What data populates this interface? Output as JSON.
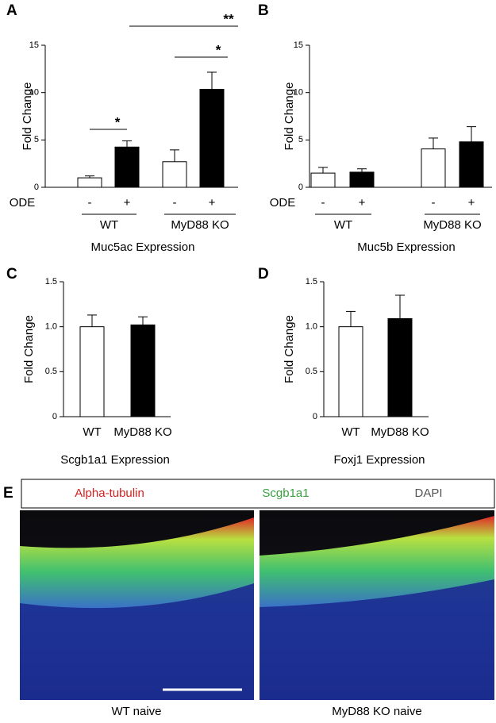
{
  "chart_data": [
    {
      "type": "bar",
      "panel": "A",
      "ylabel": "Fold Change",
      "xlabel": "Muc5ac Expression",
      "row_label": "ODE",
      "categories": [
        "-",
        "+",
        "-",
        "+"
      ],
      "groups": [
        "WT",
        "MyD88 KO"
      ],
      "values": [
        1.0,
        4.25,
        2.7,
        10.35
      ],
      "errors": [
        0.2,
        0.65,
        1.25,
        1.8
      ],
      "colors": [
        "#ffffff",
        "#000000",
        "#ffffff",
        "#000000"
      ],
      "ylim": [
        0,
        15
      ],
      "yticks": [
        0,
        5,
        10,
        15
      ],
      "annotations": [
        "*",
        "*",
        "**"
      ]
    },
    {
      "type": "bar",
      "panel": "B",
      "ylabel": "Fold Change",
      "xlabel": "Muc5b Expression",
      "row_label": "ODE",
      "categories": [
        "-",
        "+",
        "-",
        "+"
      ],
      "groups": [
        "WT",
        "MyD88 KO"
      ],
      "values": [
        1.5,
        1.6,
        4.05,
        4.8
      ],
      "errors": [
        0.6,
        0.35,
        1.15,
        1.6
      ],
      "colors": [
        "#ffffff",
        "#000000",
        "#ffffff",
        "#000000"
      ],
      "ylim": [
        0,
        15
      ],
      "yticks": [
        0,
        5,
        10,
        15
      ]
    },
    {
      "type": "bar",
      "panel": "C",
      "ylabel": "Fold Change",
      "xlabel": "Scgb1a1 Expression",
      "categories": [
        "WT",
        "MyD88 KO"
      ],
      "values": [
        1.0,
        1.02
      ],
      "errors": [
        0.13,
        0.09
      ],
      "colors": [
        "#ffffff",
        "#000000"
      ],
      "ylim": [
        0,
        1.5
      ],
      "yticks": [
        0,
        0.5,
        {
          "value": 1,
          "label": "1.0"
        },
        1.5
      ]
    },
    {
      "type": "bar",
      "panel": "D",
      "ylabel": "Fold Change",
      "xlabel": "Foxj1 Expression",
      "categories": [
        "WT",
        "MyD88 KO"
      ],
      "values": [
        1.0,
        1.09
      ],
      "errors": [
        0.17,
        0.26
      ],
      "colors": [
        "#ffffff",
        "#000000"
      ],
      "ylim": [
        0,
        1.5
      ],
      "yticks": [
        0,
        0.5,
        {
          "value": 1,
          "label": "1.0"
        },
        1.5
      ]
    }
  ],
  "panel_e": {
    "panel": "E",
    "legend": [
      "Alpha-tubulin",
      "Scgb1a1",
      "DAPI"
    ],
    "captions": [
      "WT naive",
      "MyD88 KO naive"
    ]
  }
}
